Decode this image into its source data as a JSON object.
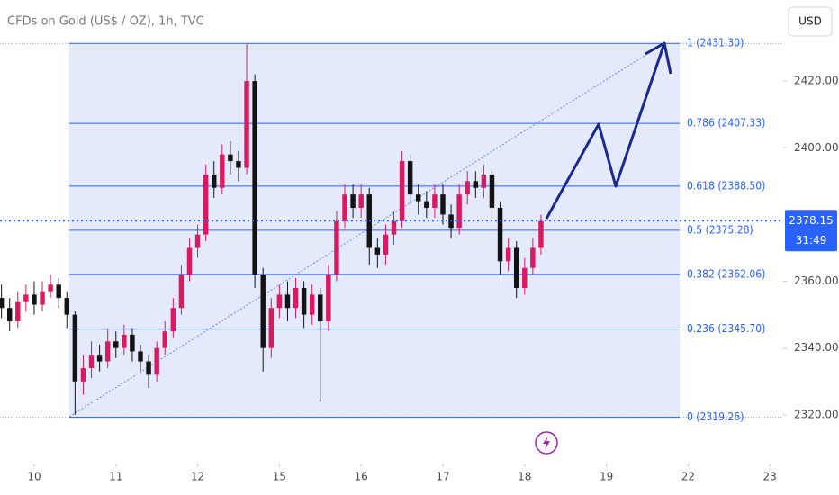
{
  "chart_data": {
    "type": "candlestick",
    "title": "CFDs on Gold (US$ / OZ), 1h, TVC",
    "currency": "USD",
    "up_color": "#d81b60",
    "down_color": "#131313",
    "xlim": [
      -0.418,
      9.163
    ],
    "ylim": [
      2305.4,
      2444.3
    ],
    "xticks": [
      {
        "value": 0,
        "label": "10"
      },
      {
        "value": 1,
        "label": "11"
      },
      {
        "value": 2,
        "label": "12"
      },
      {
        "value": 3,
        "label": "15"
      },
      {
        "value": 4,
        "label": "16"
      },
      {
        "value": 5,
        "label": "17"
      },
      {
        "value": 6,
        "label": "18"
      },
      {
        "value": 7,
        "label": "19"
      },
      {
        "value": 8,
        "label": "22"
      },
      {
        "value": 9,
        "label": "23"
      }
    ],
    "yticks": [
      {
        "value": 2320,
        "label": "2320.00"
      },
      {
        "value": 2340,
        "label": "2340.00"
      },
      {
        "value": 2360,
        "label": "2360.00"
      },
      {
        "value": 2400,
        "label": "2400.00"
      },
      {
        "value": 2420,
        "label": "2420.00"
      }
    ],
    "x": [
      -0.4,
      -0.3,
      -0.2,
      -0.1,
      0.0,
      0.1,
      0.2,
      0.3,
      0.4,
      0.5,
      0.6,
      0.7,
      0.8,
      0.9,
      1.0,
      1.1,
      1.2,
      1.3,
      1.4,
      1.5,
      1.6,
      1.7,
      1.8,
      1.9,
      2.0,
      2.1,
      2.2,
      2.3,
      2.4,
      2.5,
      2.6,
      2.7,
      2.8,
      2.9,
      3.0,
      3.1,
      3.2,
      3.3,
      3.4,
      3.5,
      3.6,
      3.7,
      3.8,
      3.9,
      4.0,
      4.1,
      4.2,
      4.3,
      4.4,
      4.5,
      4.6,
      4.7,
      4.8,
      4.9,
      5.0,
      5.1,
      5.2,
      5.3,
      5.4,
      5.5,
      5.6,
      5.7,
      5.8,
      5.9,
      6.0,
      6.1,
      6.2
    ],
    "open": [
      2355,
      2352,
      2348,
      2354,
      2356,
      2353,
      2357,
      2359,
      2355,
      2350,
      2330,
      2334,
      2338,
      2336,
      2342,
      2340,
      2344,
      2339,
      2336,
      2332,
      2340,
      2345,
      2352,
      2362,
      2370,
      2374,
      2392,
      2388,
      2398,
      2396,
      2394,
      2420,
      2362,
      2340,
      2352,
      2356,
      2352,
      2358,
      2350,
      2356,
      2348,
      2362,
      2378,
      2386,
      2382,
      2386,
      2370,
      2368,
      2374,
      2378,
      2396,
      2386,
      2384,
      2382,
      2386,
      2380,
      2376,
      2386,
      2390,
      2388,
      2392,
      2382,
      2366,
      2370,
      2358,
      2364,
      2370
    ],
    "high": [
      2359,
      2355,
      2357,
      2359,
      2360,
      2360,
      2362,
      2361,
      2357,
      2351,
      2338,
      2342,
      2341,
      2346,
      2345,
      2347,
      2346,
      2341,
      2338,
      2342,
      2348,
      2355,
      2365,
      2373,
      2377,
      2395,
      2396,
      2401,
      2402,
      2399,
      2431,
      2422,
      2364,
      2355,
      2359,
      2360,
      2361,
      2360,
      2359,
      2358,
      2365,
      2381,
      2389,
      2389,
      2389,
      2388,
      2373,
      2377,
      2381,
      2399,
      2398,
      2389,
      2387,
      2389,
      2389,
      2383,
      2389,
      2393,
      2393,
      2395,
      2394,
      2384,
      2373,
      2372,
      2367,
      2373,
      2380
    ],
    "low": [
      2349,
      2345,
      2346,
      2351,
      2350,
      2351,
      2355,
      2352,
      2346,
      2320,
      2326,
      2331,
      2333,
      2334,
      2337,
      2338,
      2336,
      2333,
      2328,
      2330,
      2338,
      2343,
      2350,
      2360,
      2367,
      2372,
      2385,
      2386,
      2392,
      2390,
      2392,
      2358,
      2333,
      2337,
      2349,
      2348,
      2349,
      2346,
      2347,
      2324,
      2345,
      2360,
      2376,
      2379,
      2379,
      2365,
      2364,
      2365,
      2371,
      2376,
      2383,
      2380,
      2379,
      2379,
      2377,
      2373,
      2374,
      2383,
      2385,
      2385,
      2379,
      2362,
      2363,
      2355,
      2356,
      2362,
      2368
    ],
    "close": [
      2352,
      2348,
      2354,
      2356,
      2353,
      2357,
      2359,
      2355,
      2350,
      2330,
      2334,
      2338,
      2336,
      2342,
      2340,
      2344,
      2339,
      2336,
      2332,
      2340,
      2345,
      2352,
      2362,
      2370,
      2374,
      2392,
      2388,
      2398,
      2396,
      2394,
      2420,
      2362,
      2340,
      2352,
      2356,
      2352,
      2358,
      2350,
      2356,
      2348,
      2362,
      2378,
      2386,
      2382,
      2386,
      2370,
      2368,
      2374,
      2378,
      2396,
      2386,
      2384,
      2382,
      2386,
      2380,
      2376,
      2386,
      2390,
      2388,
      2392,
      2382,
      2366,
      2370,
      2358,
      2364,
      2370,
      2378
    ],
    "current_price": 2378.15,
    "countdown": "31:49",
    "price_color": "#2962ff",
    "fib_color": "#2962ff",
    "fib_fill": "#e4e9fc",
    "fib_levels": [
      {
        "value": 2431.3,
        "label": "1 (2431.30)"
      },
      {
        "value": 2407.33,
        "label": "0.786 (2407.33)"
      },
      {
        "value": 2388.5,
        "label": "0.618 (2388.50)"
      },
      {
        "value": 2375.28,
        "label": "0.5 (2375.28)"
      },
      {
        "value": 2362.06,
        "label": "0.382 (2362.06)"
      },
      {
        "value": 2345.7,
        "label": "0.236 (2345.70)"
      },
      {
        "value": 2319.26,
        "label": "0 (2319.26)"
      }
    ]
  }
}
